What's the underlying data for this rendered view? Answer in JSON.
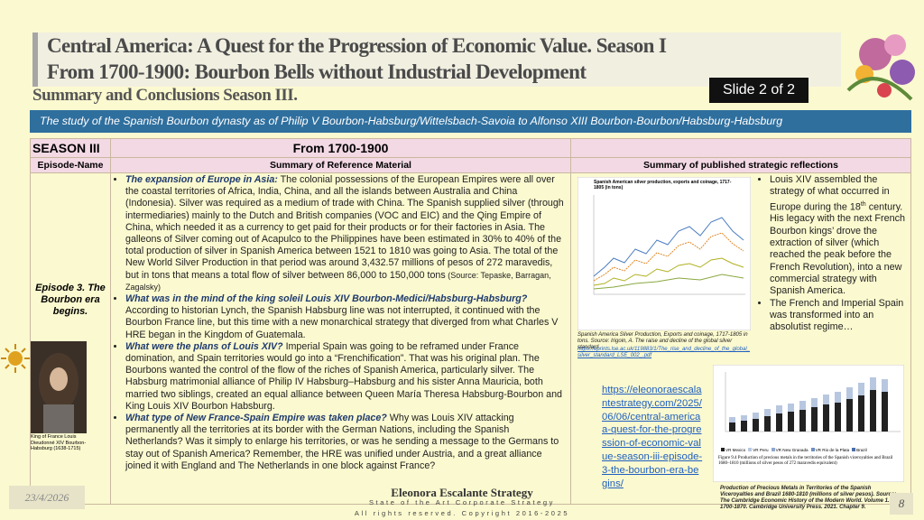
{
  "header": {
    "title_line1": "Central America:  A Quest for the Progression of  Economic Value. Season I",
    "title_line2": "From 1700-1900: Bourbon Bells without Industrial Development",
    "subtitle": "Summary and Conclusions Season III.",
    "slide_badge": "Slide 2 of 2",
    "banner": "The study of the Spanish Bourbon dynasty as of Philip V Bourbon-Habsburg/Wittelsbach-Savoia to Alfonso XIII Bourbon-Bourbon/Habsburg-Habsburg"
  },
  "table": {
    "header_row": [
      "SEASON III",
      "From 1700-1900"
    ],
    "column_headers": [
      "Episode-Name",
      "Summary of Reference Material",
      "Summary of published strategic reflections"
    ],
    "episode": "Episode 3. The Bourbon era begins.",
    "portrait_caption": "King of France Louis Dieudonné XIV Bourbon-Habsburg (1638-1715)",
    "summary": [
      {
        "lead": "The expansion of Europe in Asia:",
        "text": " The colonial possessions of the European Empires were all over the coastal territories of Africa, India, China, and all the islands between Australia and China (Indonesia). Silver was required as a medium of trade with China. The Spanish supplied silver (through intermediaries) mainly to the Dutch and British companies (VOC and EIC) and the Qing Empire of China, which needed it as a currency to get paid for their products or for their factories in Asia. The galleons of Silver coming out of Acapulco to the Philippines have been estimated in 30%  to 40% of the total production of silver in Spanish America between 1521 to 1810 was going to Asia. The total of the New World Silver Production in that period was around 3,432.57 millions of pesos of 272 maravedis, but in tons that means a total flow of silver between 86,000 to 150,000 tons",
        "source": " (Source: Tepaske, Barragan, Zagalsky)"
      },
      {
        "lead": "What was in the mind of the king soleil Louis XIV Bourbon-Medici/Habsburg-Habsburg?",
        "text": " According to historian Lynch, the Spanish Habsburg line was not interrupted, it continued with the Bourbon France line, but this time with a new monarchical strategy that diverged from what Charles V HRE began in the Kingdom of Guatemala."
      },
      {
        "lead": "What were the plans of Louis XIV?",
        "text": " Imperial Spain was going to be reframed under France domination, and Spain territories would go into a “Frenchification”. That was his original plan. The Bourbons wanted the control of the flow of the riches of Spanish America, particularly silver. The Habsburg matrimonial alliance of Philip IV Habsburg–Habsburg and his sister Anna Mauricia, both married two siblings, created an equal alliance between Queen María Theresa Habsburg-Bourbon and King Louis XIV Bourbon Habsburg."
      },
      {
        "lead": "What type of New France-Spain Empire was taken place?",
        "text": " Why was Louis XIV attacking permanently all the territories at its border with the German Nations, including the Spanish Netherlands? Was it simply to enlarge his territories, or was he sending a message to the Germans to stay out of Spanish America? Remember, the HRE was unified under Austria, and a great alliance joined it with England and The Netherlands in one block against France?"
      }
    ],
    "silver_chart": {
      "title": "Spanish American silver production, exports and coinage, 1717-1805 (in tons)",
      "caption": "Spanish America Silver Production, Exports and coinage, 1717-1805 in tons. Source: Irigoin, A. The raise and decline of the global silver standard.",
      "link": "https://eprints.lse.ac.uk/119883/1/The_rise_and_decline_of_the_global_silver_standard_LSE_002_.pdf"
    },
    "reflections": [
      {
        "before": "Louis XIV assembled the strategy of what occurred in Europe during the 18",
        "sup": "th",
        "after": " century. His legacy with the next French Bourbon kings’ drove the extraction of silver (which reached the peak before the French Revolution), into a new commercial strategy with Spanish America."
      },
      {
        "before": "The French and Imperial Spain was transformed into an absolutist regime…"
      }
    ],
    "article_link": "https://eleonoraescalantestrategy.com/2025/06/06/central-americaa-quest-for-the-progression-of-economic-value-season-iii-episode-3-the-bourbon-era-begins/",
    "metals_chart": {
      "legend": [
        "VR Mexico",
        "VR Peru",
        "VR New Granada",
        "VR Rio de la Plata",
        "Brazil"
      ],
      "figure_label": "Figure 9.4  Production of precious metals in the territories of the Spanish viceroyalties and Brazil 1680–1810 (millions of silver pesos of 272 maravedis equivalent)",
      "caption": "Production of Precious Metals in Territories of the Spanish Viceroyalties and Brazil 1680-1810 (millions of silver pesos). Source: The Cambridge Economic History of the Modern World. Volume 1. 1700-1870. Cambridge University Press. 2021. Chapter 9."
    }
  },
  "footer": {
    "date": "23/4/2026",
    "company": "Eleonora Escalante Strategy",
    "tagline": "State of the Art Corporate Strategy",
    "copyright": "All rights reserved. Copyright 2016-2025",
    "page": "8"
  }
}
